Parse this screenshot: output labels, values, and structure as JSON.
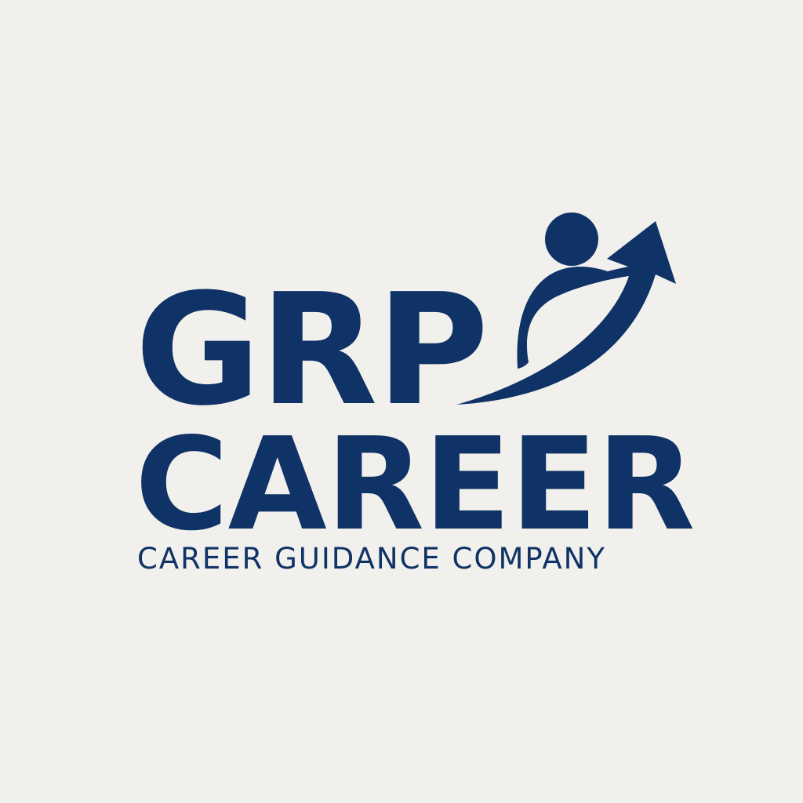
{
  "brand": {
    "name_line1": "GRP",
    "name_line2": "CAREER",
    "tagline": "CAREER GUIDANCE COMPANY",
    "color": "#0f3366",
    "background": "#f2f0ec"
  },
  "mark": {
    "icon": "person-rising-arrow-icon"
  }
}
